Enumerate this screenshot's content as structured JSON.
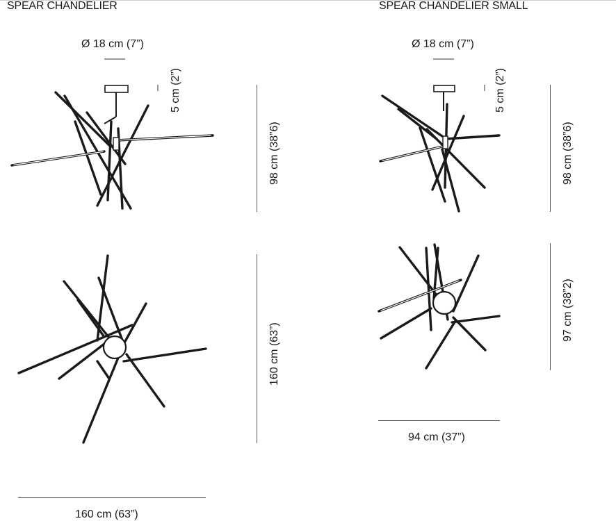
{
  "left": {
    "title": "SPEAR CHANDELIER",
    "canopy_diameter": "Ø 18 cm (7”)",
    "canopy_height": "5 cm (2”)",
    "side_height": "98 cm (38”6)",
    "plan_depth": "160 cm (63”)",
    "plan_width": "160 cm (63”)"
  },
  "right": {
    "title": "SPEAR CHANDELIER SMALL",
    "canopy_diameter": "Ø 18 cm (7”)",
    "canopy_height": "5 cm (2”)",
    "side_height": "98 cm (38”6)",
    "plan_depth": "97 cm (38”2)",
    "plan_width": "94 cm (37”)"
  }
}
